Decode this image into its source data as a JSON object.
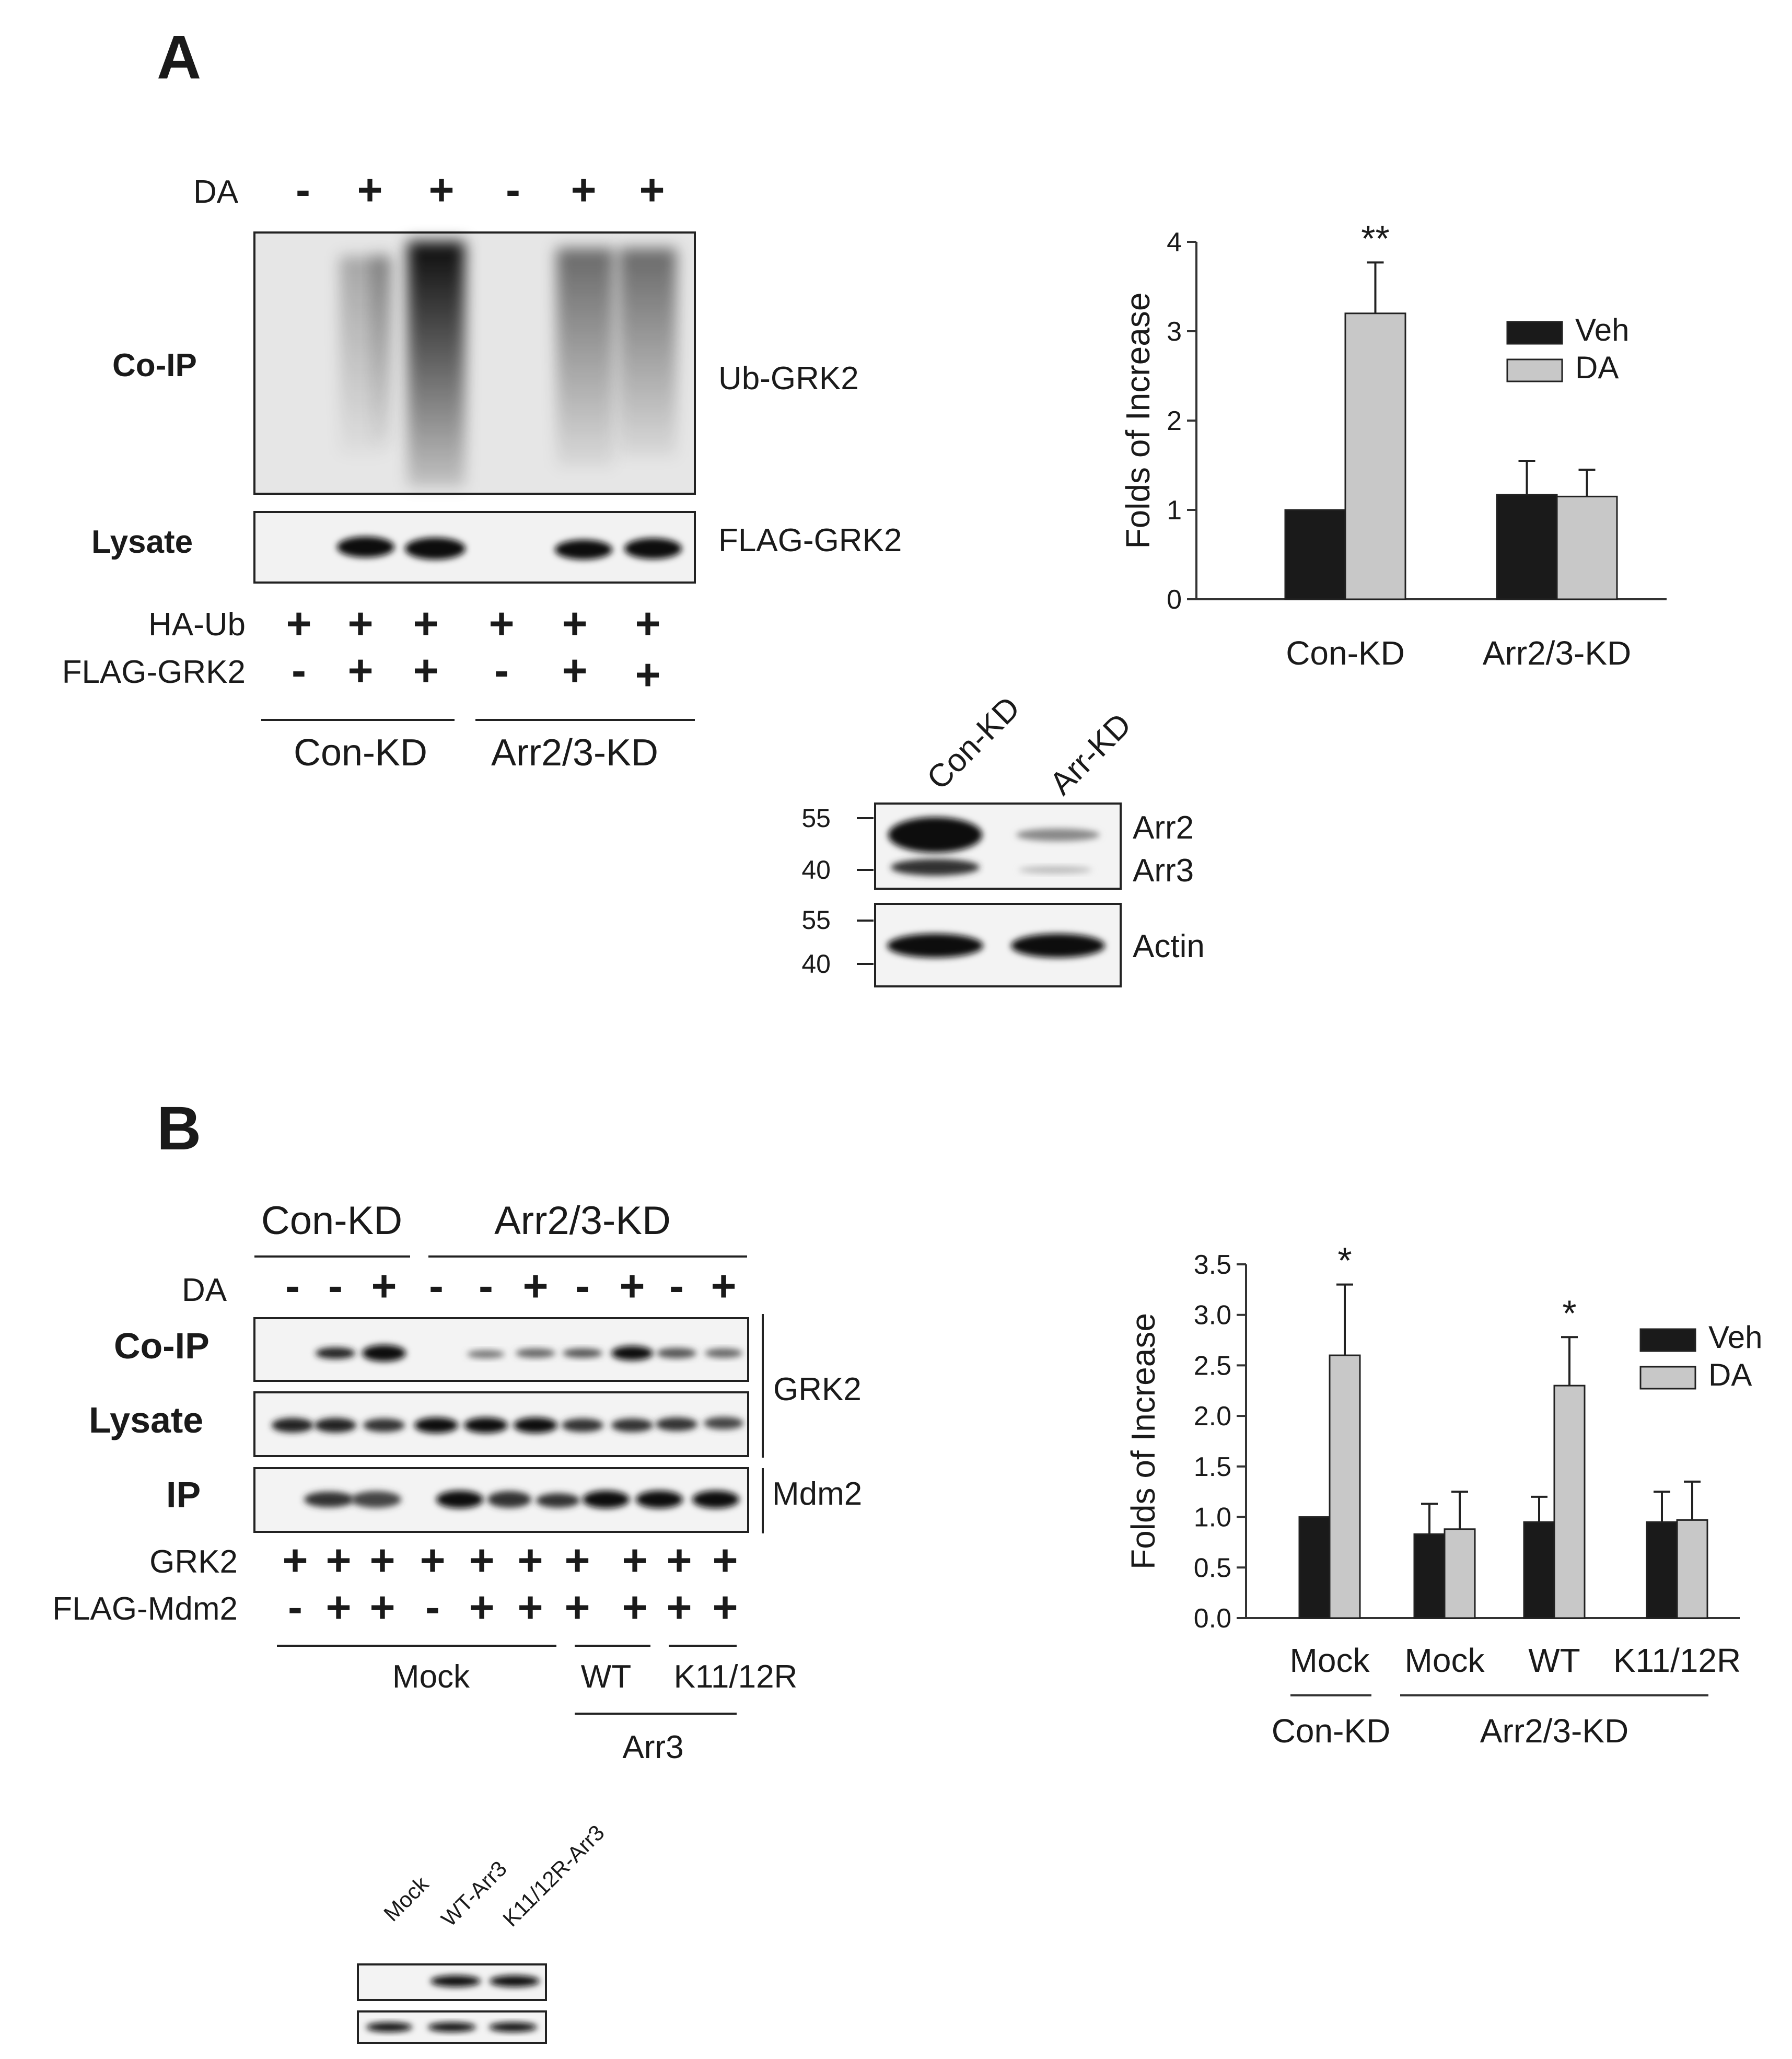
{
  "panelA": {
    "letter": "A",
    "blot": {
      "da_label": "DA",
      "da_signs": [
        "-",
        "+",
        "+",
        "-",
        "+",
        "+"
      ],
      "coip_label": "Co-IP",
      "lysate_label": "Lysate",
      "ub_grk2_label": "Ub-GRK2",
      "flag_grk2_label": "FLAG-GRK2",
      "haub_row_label": "HA-Ub",
      "haub_signs": [
        "+",
        "+",
        "+",
        "+",
        "+",
        "+"
      ],
      "flaggrk2_row_label": "FLAG-GRK2",
      "flaggrk2_signs": [
        "-",
        "+",
        "+",
        "-",
        "+",
        "+"
      ],
      "group1": "Con-KD",
      "group2": "Arr2/3-KD"
    },
    "inset": {
      "lane_labels": [
        "Con-KD",
        "Arr-KD"
      ],
      "mw_top": [
        "55",
        "40"
      ],
      "mw_bottom": [
        "55",
        "40"
      ],
      "band_labels": [
        "Arr2",
        "Arr3"
      ],
      "actin_label": "Actin"
    }
  },
  "panelB": {
    "letter": "B",
    "blot": {
      "group1": "Con-KD",
      "group2": "Arr2/3-KD",
      "da_label": "DA",
      "da_signs": [
        "-",
        "-",
        "+",
        "-",
        "-",
        "+",
        "-",
        "+",
        "-",
        "+"
      ],
      "coip_label": "Co-IP",
      "lysate_label": "Lysate",
      "ip_label": "IP",
      "grk2_label": "GRK2",
      "mdm2_label": "Mdm2",
      "grk2_row_label": "GRK2",
      "grk2_signs": [
        "+",
        "+",
        "+",
        "+",
        "+",
        "+",
        "+",
        "+",
        "+",
        "+"
      ],
      "flagmdm2_row_label": "FLAG-Mdm2",
      "flagmdm2_signs": [
        "-",
        "+",
        "+",
        "-",
        "+",
        "+",
        "+",
        "+",
        "+",
        "+"
      ],
      "mock_label": "Mock",
      "wt_label": "WT",
      "k_label": "K11/12R",
      "arr3_label": "Arr3"
    },
    "inset": {
      "lane_labels": [
        "Mock",
        "WT-Arr3",
        "K11/12R-Arr3"
      ]
    }
  },
  "chart_data": [
    {
      "type": "bar",
      "categories": [
        "Con-KD",
        "Arr2/3-KD"
      ],
      "series": [
        {
          "name": "Veh",
          "values": [
            1.0,
            1.17
          ],
          "errors": [
            0,
            0.38
          ]
        },
        {
          "name": "DA",
          "values": [
            3.2,
            1.15
          ],
          "errors": [
            0.57,
            0.3
          ]
        }
      ],
      "ylabel": "Folds of Increase",
      "ylim": [
        0,
        4
      ],
      "yticks": [
        0,
        1,
        2,
        3,
        4
      ],
      "significance": [
        {
          "category": "Con-KD",
          "series": "DA",
          "label": "**"
        }
      ],
      "legend": "right",
      "colors": {
        "Veh": "#1a1a1a",
        "DA": "#c8c8c8"
      }
    },
    {
      "type": "bar",
      "categories": [
        "Mock",
        "Mock",
        "WT",
        "K11/12R"
      ],
      "groups": [
        {
          "label": "Con-KD",
          "categories": [
            "Mock"
          ]
        },
        {
          "label": "Arr2/3-KD",
          "categories": [
            "Mock",
            "WT",
            "K11/12R"
          ]
        }
      ],
      "series": [
        {
          "name": "Veh",
          "values": [
            1.0,
            0.83,
            0.95,
            0.95
          ],
          "errors": [
            0,
            0.3,
            0.25,
            0.3
          ]
        },
        {
          "name": "DA",
          "values": [
            2.6,
            0.88,
            2.3,
            0.97
          ],
          "errors": [
            0.7,
            0.37,
            0.48,
            0.38
          ]
        }
      ],
      "ylabel": "Folds of Increase",
      "ylim": [
        0,
        3.5
      ],
      "yticks": [
        "0.0",
        "0.5",
        "1.0",
        "1.5",
        "2.0",
        "2.5",
        "3.0",
        "3.5"
      ],
      "significance": [
        {
          "category": "Mock",
          "series": "DA",
          "label": "*"
        },
        {
          "category": "WT",
          "series": "DA",
          "label": "*"
        }
      ],
      "legend": "right",
      "colors": {
        "Veh": "#1a1a1a",
        "DA": "#c8c8c8"
      }
    }
  ]
}
